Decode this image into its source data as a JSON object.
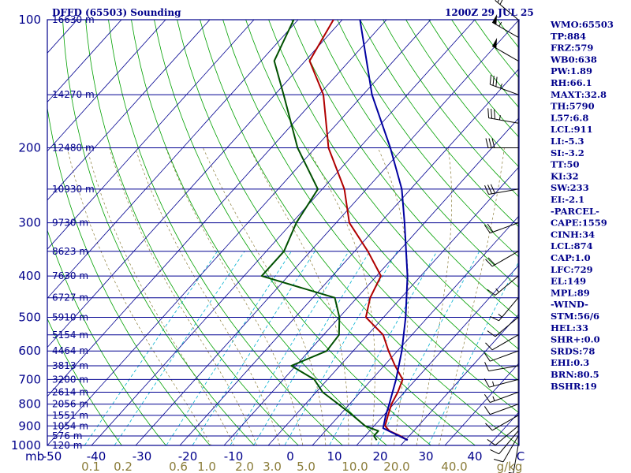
{
  "chart_data": {
    "type": "line",
    "title": "DFFD (65503) Sounding",
    "time_label": "1200Z 29 JUL 25",
    "xlabel_unit": "mb",
    "mixing_ratio_unit": "g/kg",
    "pressure_levels": [
      100,
      200,
      300,
      400,
      500,
      600,
      700,
      800,
      900,
      1000
    ],
    "pressure_labels": [
      "100",
      "200",
      "300",
      "400",
      "500",
      "600",
      "700",
      "800",
      "900",
      "1000"
    ],
    "height_levels": [
      {
        "p": 100,
        "h": "16630 m"
      },
      {
        "p": 150,
        "h": "14270 m"
      },
      {
        "p": 200,
        "h": "12480 m"
      },
      {
        "p": 250,
        "h": "10930 m"
      },
      {
        "p": 300,
        "h": "9730 m"
      },
      {
        "p": 350,
        "h": "8623 m"
      },
      {
        "p": 400,
        "h": "7630 m"
      },
      {
        "p": 450,
        "h": "6727 m"
      },
      {
        "p": 500,
        "h": "5910 m"
      },
      {
        "p": 550,
        "h": "5154 m"
      },
      {
        "p": 600,
        "h": "4464 m"
      },
      {
        "p": 650,
        "h": "3813 m"
      },
      {
        "p": 700,
        "h": "3200 m"
      },
      {
        "p": 750,
        "h": "2614 m"
      },
      {
        "p": 800,
        "h": "2056 m"
      },
      {
        "p": 850,
        "h": "1551 m"
      },
      {
        "p": 900,
        "h": "1054 m"
      },
      {
        "p": 950,
        "h": "576 m"
      },
      {
        "p": 1000,
        "h": "120 m"
      }
    ],
    "temperature_ticks": [
      "-50",
      "-40",
      "-30",
      "-20",
      "-10",
      "0",
      "10",
      "20",
      "30",
      "40",
      "C"
    ],
    "mixing_ratio_ticks": [
      "0.1",
      "0.2",
      "0.6",
      "1.0",
      "2.0",
      "3.0",
      "5.0",
      "10.0",
      "20.0",
      "40.0",
      "g/kg"
    ],
    "xlim": [
      -50,
      50
    ],
    "ylim": [
      1000,
      100
    ],
    "series": [
      {
        "role": "temperature",
        "color": "#b00000",
        "points": [
          [
            972,
            30.5
          ],
          [
            950,
            28
          ],
          [
            925,
            24.5
          ],
          [
            900,
            22.5
          ],
          [
            850,
            21
          ],
          [
            800,
            19.5
          ],
          [
            750,
            18.5
          ],
          [
            700,
            17
          ],
          [
            650,
            12.5
          ],
          [
            600,
            8
          ],
          [
            550,
            3.5
          ],
          [
            500,
            -4
          ],
          [
            450,
            -7
          ],
          [
            400,
            -9
          ],
          [
            350,
            -17
          ],
          [
            300,
            -27
          ],
          [
            250,
            -35
          ],
          [
            200,
            -47
          ],
          [
            150,
            -59
          ],
          [
            125,
            -69
          ],
          [
            100,
            -72
          ]
        ]
      },
      {
        "role": "dewpoint",
        "color": "#005000",
        "points": [
          [
            972,
            23.5
          ],
          [
            950,
            22
          ],
          [
            925,
            22
          ],
          [
            900,
            18
          ],
          [
            850,
            13
          ],
          [
            800,
            7.5
          ],
          [
            750,
            1.5
          ],
          [
            700,
            -3
          ],
          [
            650,
            -11
          ],
          [
            600,
            -6
          ],
          [
            550,
            -6.5
          ],
          [
            500,
            -10
          ],
          [
            450,
            -15
          ],
          [
            400,
            -36
          ],
          [
            350,
            -36
          ],
          [
            300,
            -39
          ],
          [
            250,
            -41
          ],
          [
            200,
            -54
          ],
          [
            150,
            -68
          ],
          [
            125,
            -77
          ],
          [
            100,
            -81
          ]
        ]
      },
      {
        "role": "parcel",
        "color": "#0000a0",
        "points": [
          [
            972,
            30.5
          ],
          [
            911,
            22.5
          ],
          [
            850,
            20.5
          ],
          [
            800,
            19
          ],
          [
            700,
            15.5
          ],
          [
            600,
            11
          ],
          [
            500,
            5
          ],
          [
            400,
            -3
          ],
          [
            300,
            -14.5
          ],
          [
            250,
            -22
          ],
          [
            200,
            -33
          ],
          [
            150,
            -48
          ],
          [
            100,
            -66
          ]
        ]
      }
    ],
    "wind_barbs": [
      {
        "p": 1000,
        "dir": 190,
        "kt": 5
      },
      {
        "p": 950,
        "dir": 210,
        "kt": 10
      },
      {
        "p": 925,
        "dir": 220,
        "kt": 10
      },
      {
        "p": 900,
        "dir": 230,
        "kt": 10
      },
      {
        "p": 850,
        "dir": 240,
        "kt": 10
      },
      {
        "p": 800,
        "dir": 250,
        "kt": 10
      },
      {
        "p": 750,
        "dir": 250,
        "kt": 15
      },
      {
        "p": 700,
        "dir": 255,
        "kt": 15
      },
      {
        "p": 650,
        "dir": 260,
        "kt": 10
      },
      {
        "p": 600,
        "dir": 250,
        "kt": 10
      },
      {
        "p": 550,
        "dir": 240,
        "kt": 10
      },
      {
        "p": 500,
        "dir": 230,
        "kt": 10
      },
      {
        "p": 450,
        "dir": 220,
        "kt": 15
      },
      {
        "p": 400,
        "dir": 230,
        "kt": 15
      },
      {
        "p": 350,
        "dir": 240,
        "kt": 20
      },
      {
        "p": 300,
        "dir": 250,
        "kt": 20
      },
      {
        "p": 250,
        "dir": 260,
        "kt": 30
      },
      {
        "p": 200,
        "dir": 270,
        "kt": 30
      },
      {
        "p": 175,
        "dir": 280,
        "kt": 35
      },
      {
        "p": 150,
        "dir": 290,
        "kt": 35
      },
      {
        "p": 125,
        "dir": 300,
        "kt": 50
      },
      {
        "p": 110,
        "dir": 300,
        "kt": 55
      },
      {
        "p": 100,
        "dir": 310,
        "kt": 30
      }
    ],
    "indices": [
      "WMO:65503",
      "TP:884",
      "FRZ:579",
      "WB0:638",
      "PW:1.89",
      "RH:66.1",
      "MAXT:32.8",
      "TH:5790",
      "L57:6.8",
      "LCL:911",
      "LI:-5.3",
      "SI:-3.2",
      "TT:50",
      "KI:32",
      "SW:233",
      "EI:-2.1",
      "-PARCEL-",
      "CAPE:1559",
      "CINH:34",
      "LCL:874",
      "CAP:1.0",
      "LFC:729",
      "EL:149",
      "MPL:89",
      "-WIND-",
      "STM:56/6",
      "HEL:33",
      "SHR+:0.0",
      "SRDS:78",
      "EHI:0.3",
      "BRN:80.5",
      "BSHR:19"
    ],
    "colors": {
      "isobar": "#000090",
      "isotherm": "#000090",
      "dry_adiabat": "#00a000",
      "moist_adiabat": "#8b7d3a",
      "mixing_ratio": "#00b0d0",
      "frame": "#00008b"
    }
  }
}
